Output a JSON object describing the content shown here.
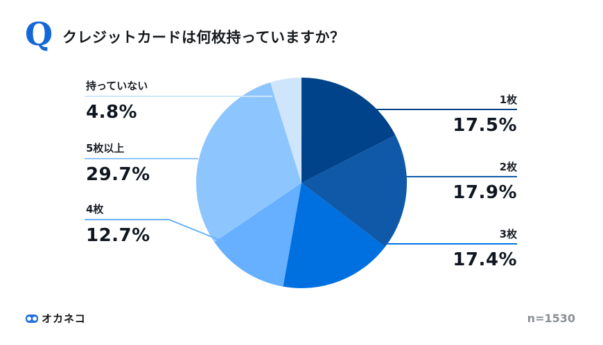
{
  "header": {
    "q_mark": "Q",
    "title": "クレジットカードは何枚持っていますか？"
  },
  "footer": {
    "brand": "オカネコ",
    "sample_size": "n=1530"
  },
  "labels": {
    "s1": {
      "label": "1枚",
      "pct": "17.5%"
    },
    "s2": {
      "label": "2枚",
      "pct": "17.9%"
    },
    "s3": {
      "label": "3枚",
      "pct": "17.4%"
    },
    "s4": {
      "label": "4枚",
      "pct": "12.7%"
    },
    "s5": {
      "label": "5枚以上",
      "pct": "29.7%"
    },
    "s6": {
      "label": "持っていない",
      "pct": "4.8%"
    }
  },
  "chart_data": {
    "type": "pie",
    "title": "クレジットカードは何枚持っていますか？",
    "categories": [
      "1枚",
      "2枚",
      "3枚",
      "4枚",
      "5枚以上",
      "持っていない"
    ],
    "values": [
      17.5,
      17.9,
      17.4,
      12.7,
      29.7,
      4.8
    ],
    "colors": [
      "#00438A",
      "#1059A8",
      "#0070E0",
      "#66B0FF",
      "#8DC5FF",
      "#CFE5FB"
    ],
    "unit": "%",
    "start_angle": "12 o'clock, clockwise",
    "sample_size": 1530,
    "legend": "callout labels with leader lines"
  }
}
